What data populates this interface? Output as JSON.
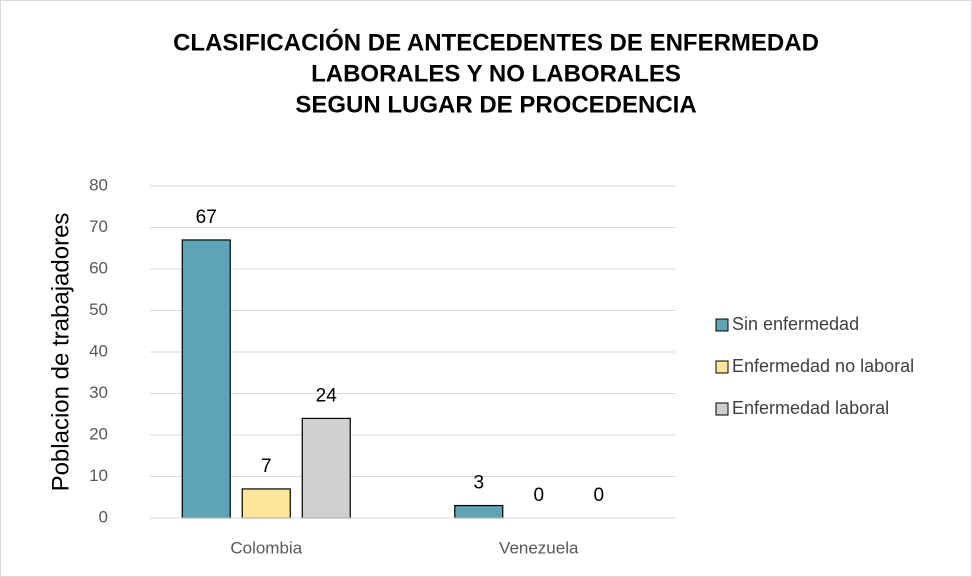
{
  "chart_data": {
    "type": "bar",
    "title": [
      "CLASIFICACIÓN DE ANTECEDENTES DE ENFERMEDAD",
      "LABORALES Y NO LABORALES",
      "SEGUN LUGAR DE PROCEDENCIA"
    ],
    "y_label": "Poblacion de trabajadores",
    "categories": [
      "Colombia",
      "Venezuela"
    ],
    "series": [
      {
        "name": "Sin enfermedad",
        "color": "#5fa3b6",
        "values": [
          67,
          3
        ]
      },
      {
        "name": "Enfermedad no laboral",
        "color": "#ffe699",
        "values": [
          7,
          0
        ]
      },
      {
        "name": "Enfermedad laboral",
        "color": "#d0cece",
        "values": [
          24,
          0
        ]
      }
    ],
    "ylim": [
      0,
      80
    ],
    "yticks": [
      0,
      10,
      20,
      30,
      40,
      50,
      60,
      70,
      80
    ],
    "grid": true,
    "legend": "right"
  }
}
